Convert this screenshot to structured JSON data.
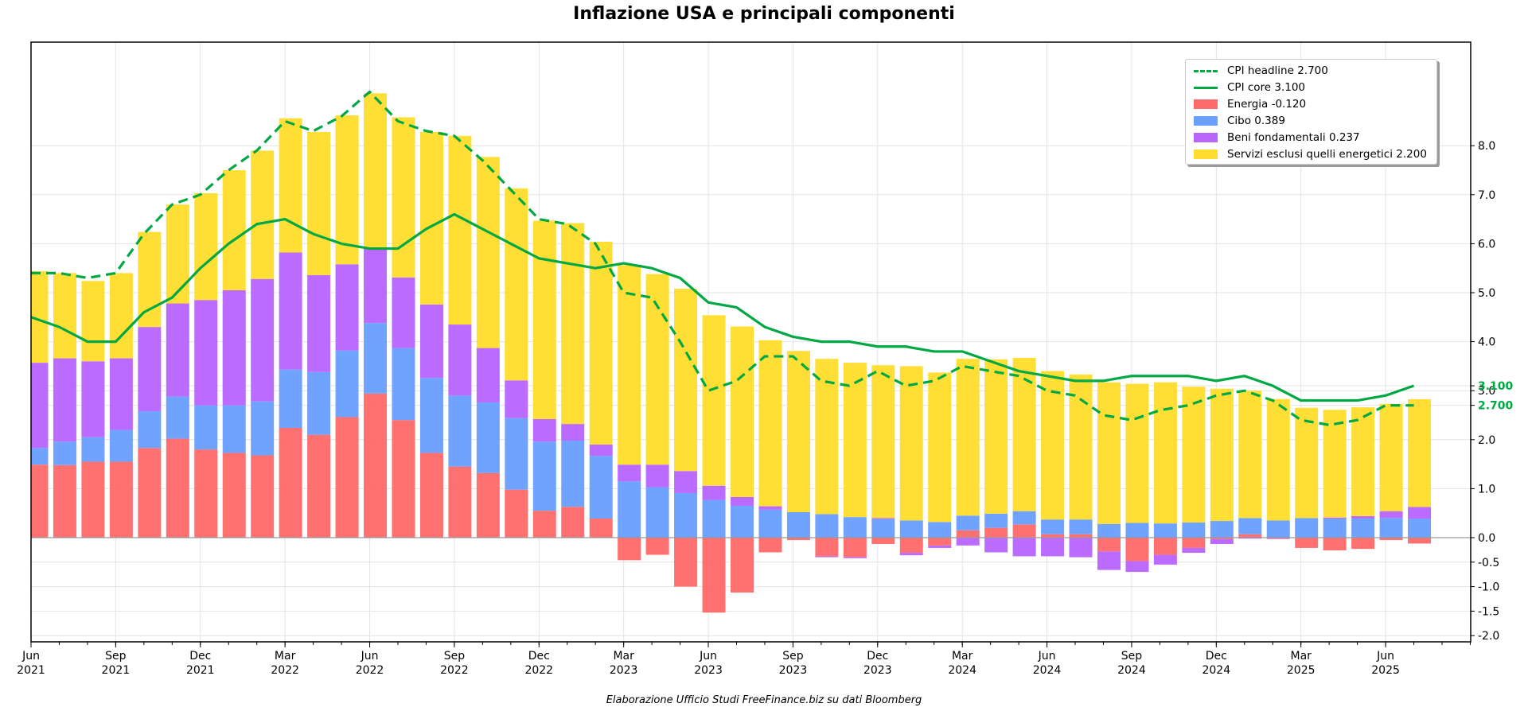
{
  "chart_data": {
    "type": "bar",
    "stacked": true,
    "title": "Inflazione USA e principali componenti",
    "footer": "Elaborazione Ufficio Studi FreeFinance.biz su dati Bloomberg",
    "xlabel": "",
    "ylabel": "",
    "ylim": [
      -2.1,
      10.5
    ],
    "yaxis_side": "right",
    "yticks": [
      "8.0",
      "7.0",
      "6.0",
      "5.0",
      "4.0",
      "3.0",
      "2.0",
      "1.0",
      "0.0",
      "-0.5",
      "-1.0",
      "-1.5",
      "-2.0"
    ],
    "ytick_values": [
      8,
      7,
      6,
      5,
      4,
      3,
      2,
      1,
      0,
      -0.5,
      -1,
      -1.5,
      -2
    ],
    "grid": true,
    "legend_position": "top-right",
    "x": [
      "2021-06",
      "2021-07",
      "2021-08",
      "2021-09",
      "2021-10",
      "2021-11",
      "2021-12",
      "2022-01",
      "2022-02",
      "2022-03",
      "2022-04",
      "2022-05",
      "2022-06",
      "2022-07",
      "2022-08",
      "2022-09",
      "2022-10",
      "2022-11",
      "2022-12",
      "2023-01",
      "2023-02",
      "2023-03",
      "2023-04",
      "2023-05",
      "2023-06",
      "2023-07",
      "2023-08",
      "2023-09",
      "2023-10",
      "2023-11",
      "2023-12",
      "2024-01",
      "2024-02",
      "2024-03",
      "2024-04",
      "2024-05",
      "2024-06",
      "2024-07",
      "2024-08",
      "2024-09",
      "2024-10",
      "2024-11",
      "2024-12",
      "2025-01",
      "2025-02",
      "2025-03",
      "2025-04",
      "2025-05",
      "2025-06",
      "2025-07"
    ],
    "xticks": [
      {
        "month": "Jun",
        "year": "2021",
        "index": 0
      },
      {
        "month": "Sep",
        "year": "2021",
        "index": 3
      },
      {
        "month": "Dec",
        "year": "2021",
        "index": 6
      },
      {
        "month": "Mar",
        "year": "2022",
        "index": 9
      },
      {
        "month": "Jun",
        "year": "2022",
        "index": 12
      },
      {
        "month": "Sep",
        "year": "2022",
        "index": 15
      },
      {
        "month": "Dec",
        "year": "2022",
        "index": 18
      },
      {
        "month": "Mar",
        "year": "2023",
        "index": 21
      },
      {
        "month": "Jun",
        "year": "2023",
        "index": 24
      },
      {
        "month": "Sep",
        "year": "2023",
        "index": 27
      },
      {
        "month": "Dec",
        "year": "2023",
        "index": 30
      },
      {
        "month": "Mar",
        "year": "2024",
        "index": 33
      },
      {
        "month": "Jun",
        "year": "2024",
        "index": 36
      },
      {
        "month": "Sep",
        "year": "2024",
        "index": 39
      },
      {
        "month": "Dec",
        "year": "2024",
        "index": 42
      },
      {
        "month": "Mar",
        "year": "2025",
        "index": 45
      },
      {
        "month": "Jun",
        "year": "2025",
        "index": 48
      }
    ],
    "series": [
      {
        "name": "Energia",
        "legend": "Energia -0.120",
        "kind": "bar",
        "color": "#ff6b6b",
        "values": [
          1.49,
          1.48,
          1.55,
          1.55,
          1.83,
          2.02,
          1.8,
          1.73,
          1.68,
          2.24,
          2.1,
          2.46,
          2.94,
          2.4,
          1.73,
          1.45,
          1.32,
          0.98,
          0.55,
          0.63,
          0.39,
          -0.46,
          -0.35,
          -1.0,
          -1.53,
          -1.12,
          -0.3,
          -0.05,
          -0.38,
          -0.4,
          -0.13,
          -0.31,
          -0.16,
          0.15,
          0.2,
          0.27,
          0.07,
          0.07,
          -0.28,
          -0.48,
          -0.35,
          -0.21,
          -0.03,
          0.07,
          -0.02,
          -0.21,
          -0.26,
          -0.23,
          -0.05,
          -0.12
        ]
      },
      {
        "name": "Cibo",
        "legend": "Cibo 0.389",
        "kind": "bar",
        "color": "#6aa0ff",
        "values": [
          0.34,
          0.48,
          0.5,
          0.65,
          0.75,
          0.86,
          0.9,
          0.97,
          1.1,
          1.19,
          1.28,
          1.36,
          1.44,
          1.47,
          1.53,
          1.45,
          1.44,
          1.46,
          1.41,
          1.35,
          1.28,
          1.15,
          1.03,
          0.91,
          0.77,
          0.65,
          0.57,
          0.52,
          0.48,
          0.42,
          0.38,
          0.35,
          0.32,
          0.3,
          0.29,
          0.27,
          0.3,
          0.3,
          0.28,
          0.3,
          0.29,
          0.31,
          0.34,
          0.33,
          0.35,
          0.4,
          0.39,
          0.39,
          0.4,
          0.389
        ]
      },
      {
        "name": "Beni fondamentali",
        "legend": "Beni fondamentali 0.237",
        "kind": "bar",
        "color": "#b966ff",
        "values": [
          1.74,
          1.7,
          1.55,
          1.46,
          1.72,
          1.9,
          2.15,
          2.35,
          2.5,
          2.39,
          1.98,
          1.76,
          1.52,
          1.44,
          1.5,
          1.45,
          1.11,
          0.77,
          0.46,
          0.34,
          0.23,
          0.34,
          0.46,
          0.45,
          0.29,
          0.18,
          0.07,
          0.0,
          -0.02,
          -0.02,
          0.02,
          -0.05,
          -0.05,
          -0.16,
          -0.3,
          -0.38,
          -0.38,
          -0.4,
          -0.38,
          -0.22,
          -0.2,
          -0.1,
          -0.1,
          -0.02,
          -0.01,
          0.0,
          0.02,
          0.05,
          0.14,
          0.237
        ]
      },
      {
        "name": "Servizi esclusi quelli energetici",
        "legend": "Servizi esclusi quelli energetici 2.200",
        "kind": "bar",
        "color": "#ffdd2e",
        "values": [
          1.87,
          1.74,
          1.64,
          1.74,
          1.94,
          2.02,
          2.18,
          2.45,
          2.62,
          2.74,
          2.92,
          3.04,
          3.17,
          3.27,
          3.52,
          3.85,
          3.9,
          3.92,
          4.05,
          4.1,
          4.14,
          4.07,
          3.89,
          3.72,
          3.48,
          3.48,
          3.39,
          3.29,
          3.17,
          3.15,
          3.12,
          3.15,
          3.05,
          3.2,
          3.15,
          3.13,
          3.03,
          2.96,
          2.89,
          2.84,
          2.88,
          2.77,
          2.7,
          2.6,
          2.48,
          2.25,
          2.2,
          2.22,
          2.19,
          2.2
        ]
      },
      {
        "name": "CPI headline",
        "legend": "CPI headline 2.700",
        "kind": "line",
        "style": "dashed",
        "color": "#00a843",
        "values": [
          5.4,
          5.4,
          5.3,
          5.4,
          6.2,
          6.8,
          7.0,
          7.5,
          7.9,
          8.5,
          8.3,
          8.6,
          9.1,
          8.5,
          8.3,
          8.2,
          7.7,
          7.1,
          6.5,
          6.4,
          6.0,
          5.0,
          4.9,
          4.0,
          3.0,
          3.2,
          3.7,
          3.7,
          3.2,
          3.1,
          3.4,
          3.1,
          3.2,
          3.5,
          3.4,
          3.3,
          3.0,
          2.9,
          2.5,
          2.4,
          2.6,
          2.7,
          2.9,
          3.0,
          2.8,
          2.4,
          2.3,
          2.4,
          2.7,
          2.7
        ],
        "last_label": "2.700"
      },
      {
        "name": "CPI core",
        "legend": "CPI core 3.100",
        "kind": "line",
        "style": "solid",
        "color": "#00a843",
        "values": [
          4.5,
          4.3,
          4.0,
          4.0,
          4.6,
          4.9,
          5.5,
          6.0,
          6.4,
          6.5,
          6.2,
          6.0,
          5.9,
          5.9,
          6.3,
          6.6,
          6.3,
          6.0,
          5.7,
          5.6,
          5.5,
          5.6,
          5.5,
          5.3,
          4.8,
          4.7,
          4.3,
          4.1,
          4.0,
          4.0,
          3.9,
          3.9,
          3.8,
          3.8,
          3.6,
          3.4,
          3.3,
          3.2,
          3.2,
          3.3,
          3.3,
          3.3,
          3.2,
          3.3,
          3.1,
          2.8,
          2.8,
          2.8,
          2.9,
          3.1
        ],
        "last_label": "3.100"
      }
    ]
  }
}
